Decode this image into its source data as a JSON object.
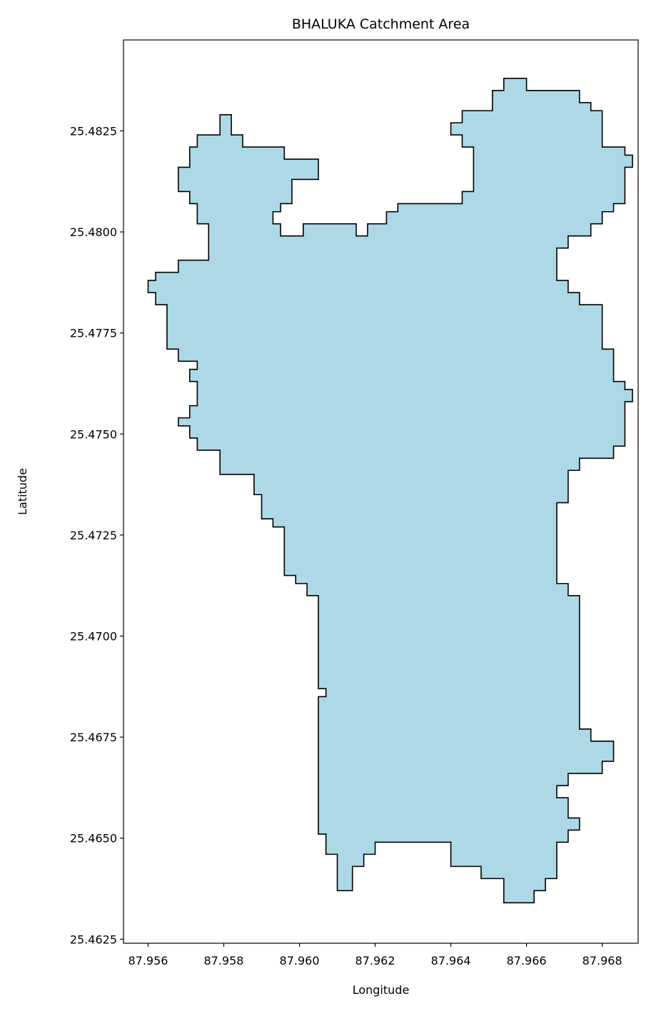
{
  "chart_data": {
    "type": "area",
    "title": "BHALUKA Catchment Area",
    "xlabel": "Longitude",
    "ylabel": "Latitude",
    "xlim": [
      87.95535,
      87.96895
    ],
    "ylim": [
      25.4624,
      25.48475
    ],
    "xticks": [
      87.956,
      87.958,
      87.96,
      87.962,
      87.964,
      87.966,
      87.968
    ],
    "xtick_labels": [
      "87.956",
      "87.958",
      "87.960",
      "87.962",
      "87.964",
      "87.966",
      "87.968"
    ],
    "yticks": [
      25.4625,
      25.465,
      25.4675,
      25.47,
      25.4725,
      25.475,
      25.4775,
      25.48,
      25.4825
    ],
    "ytick_labels": [
      "25.4625",
      "25.4650",
      "25.4675",
      "25.4700",
      "25.4725",
      "25.4750",
      "25.4775",
      "25.4800",
      "25.4825"
    ],
    "grid": false,
    "fill_color": "#add8e6",
    "edge_color": "#000000",
    "boundary_lon_lat": [
      [
        87.9614,
        25.4637
      ],
      [
        87.9614,
        25.4643
      ],
      [
        87.9617,
        25.4643
      ],
      [
        87.9617,
        25.4646
      ],
      [
        87.962,
        25.4646
      ],
      [
        87.962,
        25.4649
      ],
      [
        87.964,
        25.4649
      ],
      [
        87.964,
        25.4643
      ],
      [
        87.9648,
        25.4643
      ],
      [
        87.9648,
        25.464
      ],
      [
        87.9654,
        25.464
      ],
      [
        87.9654,
        25.4634
      ],
      [
        87.9662,
        25.4634
      ],
      [
        87.9662,
        25.4637
      ],
      [
        87.9665,
        25.4637
      ],
      [
        87.9665,
        25.464
      ],
      [
        87.9668,
        25.464
      ],
      [
        87.9668,
        25.4649
      ],
      [
        87.9671,
        25.4649
      ],
      [
        87.9671,
        25.4652
      ],
      [
        87.9674,
        25.4652
      ],
      [
        87.9674,
        25.4655
      ],
      [
        87.9671,
        25.4655
      ],
      [
        87.9671,
        25.466
      ],
      [
        87.9668,
        25.466
      ],
      [
        87.9668,
        25.4663
      ],
      [
        87.9671,
        25.4663
      ],
      [
        87.9671,
        25.4666
      ],
      [
        87.968,
        25.4666
      ],
      [
        87.968,
        25.4669
      ],
      [
        87.9683,
        25.4669
      ],
      [
        87.9683,
        25.4674
      ],
      [
        87.9677,
        25.4674
      ],
      [
        87.9677,
        25.4677
      ],
      [
        87.9674,
        25.4677
      ],
      [
        87.9674,
        25.471
      ],
      [
        87.9671,
        25.471
      ],
      [
        87.9671,
        25.4713
      ],
      [
        87.9668,
        25.4713
      ],
      [
        87.9668,
        25.4733
      ],
      [
        87.9671,
        25.4733
      ],
      [
        87.9671,
        25.4741
      ],
      [
        87.9674,
        25.4741
      ],
      [
        87.9674,
        25.4744
      ],
      [
        87.9683,
        25.4744
      ],
      [
        87.9683,
        25.4747
      ],
      [
        87.9686,
        25.4747
      ],
      [
        87.9686,
        25.4758
      ],
      [
        87.9688,
        25.4758
      ],
      [
        87.9688,
        25.4761
      ],
      [
        87.9686,
        25.4761
      ],
      [
        87.9686,
        25.4763
      ],
      [
        87.9683,
        25.4763
      ],
      [
        87.9683,
        25.4771
      ],
      [
        87.968,
        25.4771
      ],
      [
        87.968,
        25.4782
      ],
      [
        87.9674,
        25.4782
      ],
      [
        87.9674,
        25.4785
      ],
      [
        87.9671,
        25.4785
      ],
      [
        87.9671,
        25.4788
      ],
      [
        87.9668,
        25.4788
      ],
      [
        87.9668,
        25.4796
      ],
      [
        87.9671,
        25.4796
      ],
      [
        87.9671,
        25.4799
      ],
      [
        87.9677,
        25.4799
      ],
      [
        87.9677,
        25.4802
      ],
      [
        87.968,
        25.4802
      ],
      [
        87.968,
        25.4805
      ],
      [
        87.9683,
        25.4805
      ],
      [
        87.9683,
        25.4807
      ],
      [
        87.9686,
        25.4807
      ],
      [
        87.9686,
        25.4816
      ],
      [
        87.9688,
        25.4816
      ],
      [
        87.9688,
        25.4819
      ],
      [
        87.9686,
        25.4819
      ],
      [
        87.9686,
        25.4821
      ],
      [
        87.968,
        25.4821
      ],
      [
        87.968,
        25.483
      ],
      [
        87.9677,
        25.483
      ],
      [
        87.9677,
        25.4832
      ],
      [
        87.9674,
        25.4832
      ],
      [
        87.9674,
        25.4835
      ],
      [
        87.966,
        25.4835
      ],
      [
        87.966,
        25.4838
      ],
      [
        87.9654,
        25.4838
      ],
      [
        87.9654,
        25.4835
      ],
      [
        87.9651,
        25.4835
      ],
      [
        87.9651,
        25.483
      ],
      [
        87.9643,
        25.483
      ],
      [
        87.9643,
        25.4827
      ],
      [
        87.964,
        25.4827
      ],
      [
        87.964,
        25.4824
      ],
      [
        87.9643,
        25.4824
      ],
      [
        87.9643,
        25.4821
      ],
      [
        87.9646,
        25.4821
      ],
      [
        87.9646,
        25.481
      ],
      [
        87.9643,
        25.481
      ],
      [
        87.9643,
        25.4807
      ],
      [
        87.9626,
        25.4807
      ],
      [
        87.9626,
        25.4805
      ],
      [
        87.9623,
        25.4805
      ],
      [
        87.9623,
        25.4802
      ],
      [
        87.9618,
        25.4802
      ],
      [
        87.9618,
        25.4799
      ],
      [
        87.9615,
        25.4799
      ],
      [
        87.9615,
        25.4802
      ],
      [
        87.9601,
        25.4802
      ],
      [
        87.9601,
        25.4799
      ],
      [
        87.9595,
        25.4799
      ],
      [
        87.9595,
        25.4802
      ],
      [
        87.9593,
        25.4802
      ],
      [
        87.9593,
        25.4805
      ],
      [
        87.9595,
        25.4805
      ],
      [
        87.9595,
        25.4807
      ],
      [
        87.9598,
        25.4807
      ],
      [
        87.9598,
        25.4813
      ],
      [
        87.9605,
        25.4813
      ],
      [
        87.9605,
        25.4818
      ],
      [
        87.9596,
        25.4818
      ],
      [
        87.9596,
        25.4821
      ],
      [
        87.9585,
        25.4821
      ],
      [
        87.9585,
        25.4824
      ],
      [
        87.9582,
        25.4824
      ],
      [
        87.9582,
        25.4829
      ],
      [
        87.9579,
        25.4829
      ],
      [
        87.9579,
        25.4824
      ],
      [
        87.9573,
        25.4824
      ],
      [
        87.9573,
        25.4821
      ],
      [
        87.9571,
        25.4821
      ],
      [
        87.9571,
        25.4816
      ],
      [
        87.9568,
        25.4816
      ],
      [
        87.9568,
        25.481
      ],
      [
        87.9571,
        25.481
      ],
      [
        87.9571,
        25.4807
      ],
      [
        87.9573,
        25.4807
      ],
      [
        87.9573,
        25.4802
      ],
      [
        87.9576,
        25.4802
      ],
      [
        87.9576,
        25.4793
      ],
      [
        87.9568,
        25.4793
      ],
      [
        87.9568,
        25.479
      ],
      [
        87.9562,
        25.479
      ],
      [
        87.9562,
        25.4788
      ],
      [
        87.956,
        25.4788
      ],
      [
        87.956,
        25.4785
      ],
      [
        87.9562,
        25.4785
      ],
      [
        87.9562,
        25.4782
      ],
      [
        87.9565,
        25.4782
      ],
      [
        87.9565,
        25.4771
      ],
      [
        87.9568,
        25.4771
      ],
      [
        87.9568,
        25.4768
      ],
      [
        87.9573,
        25.4768
      ],
      [
        87.9573,
        25.4766
      ],
      [
        87.9571,
        25.4766
      ],
      [
        87.9571,
        25.4763
      ],
      [
        87.9573,
        25.4763
      ],
      [
        87.9573,
        25.4757
      ],
      [
        87.9571,
        25.4757
      ],
      [
        87.9571,
        25.4754
      ],
      [
        87.9568,
        25.4754
      ],
      [
        87.9568,
        25.4752
      ],
      [
        87.9571,
        25.4752
      ],
      [
        87.9571,
        25.4749
      ],
      [
        87.9573,
        25.4749
      ],
      [
        87.9573,
        25.4746
      ],
      [
        87.9579,
        25.4746
      ],
      [
        87.9579,
        25.474
      ],
      [
        87.9588,
        25.474
      ],
      [
        87.9588,
        25.4735
      ],
      [
        87.959,
        25.4735
      ],
      [
        87.959,
        25.4729
      ],
      [
        87.9593,
        25.4729
      ],
      [
        87.9593,
        25.4727
      ],
      [
        87.9596,
        25.4727
      ],
      [
        87.9596,
        25.4715
      ],
      [
        87.9599,
        25.4715
      ],
      [
        87.9599,
        25.4713
      ],
      [
        87.9602,
        25.4713
      ],
      [
        87.9602,
        25.471
      ],
      [
        87.9605,
        25.471
      ],
      [
        87.9605,
        25.4687
      ],
      [
        87.9607,
        25.4687
      ],
      [
        87.9607,
        25.4685
      ],
      [
        87.9605,
        25.4685
      ],
      [
        87.9605,
        25.4651
      ],
      [
        87.9607,
        25.4651
      ],
      [
        87.9607,
        25.4646
      ],
      [
        87.961,
        25.4646
      ],
      [
        87.961,
        25.4637
      ]
    ]
  }
}
